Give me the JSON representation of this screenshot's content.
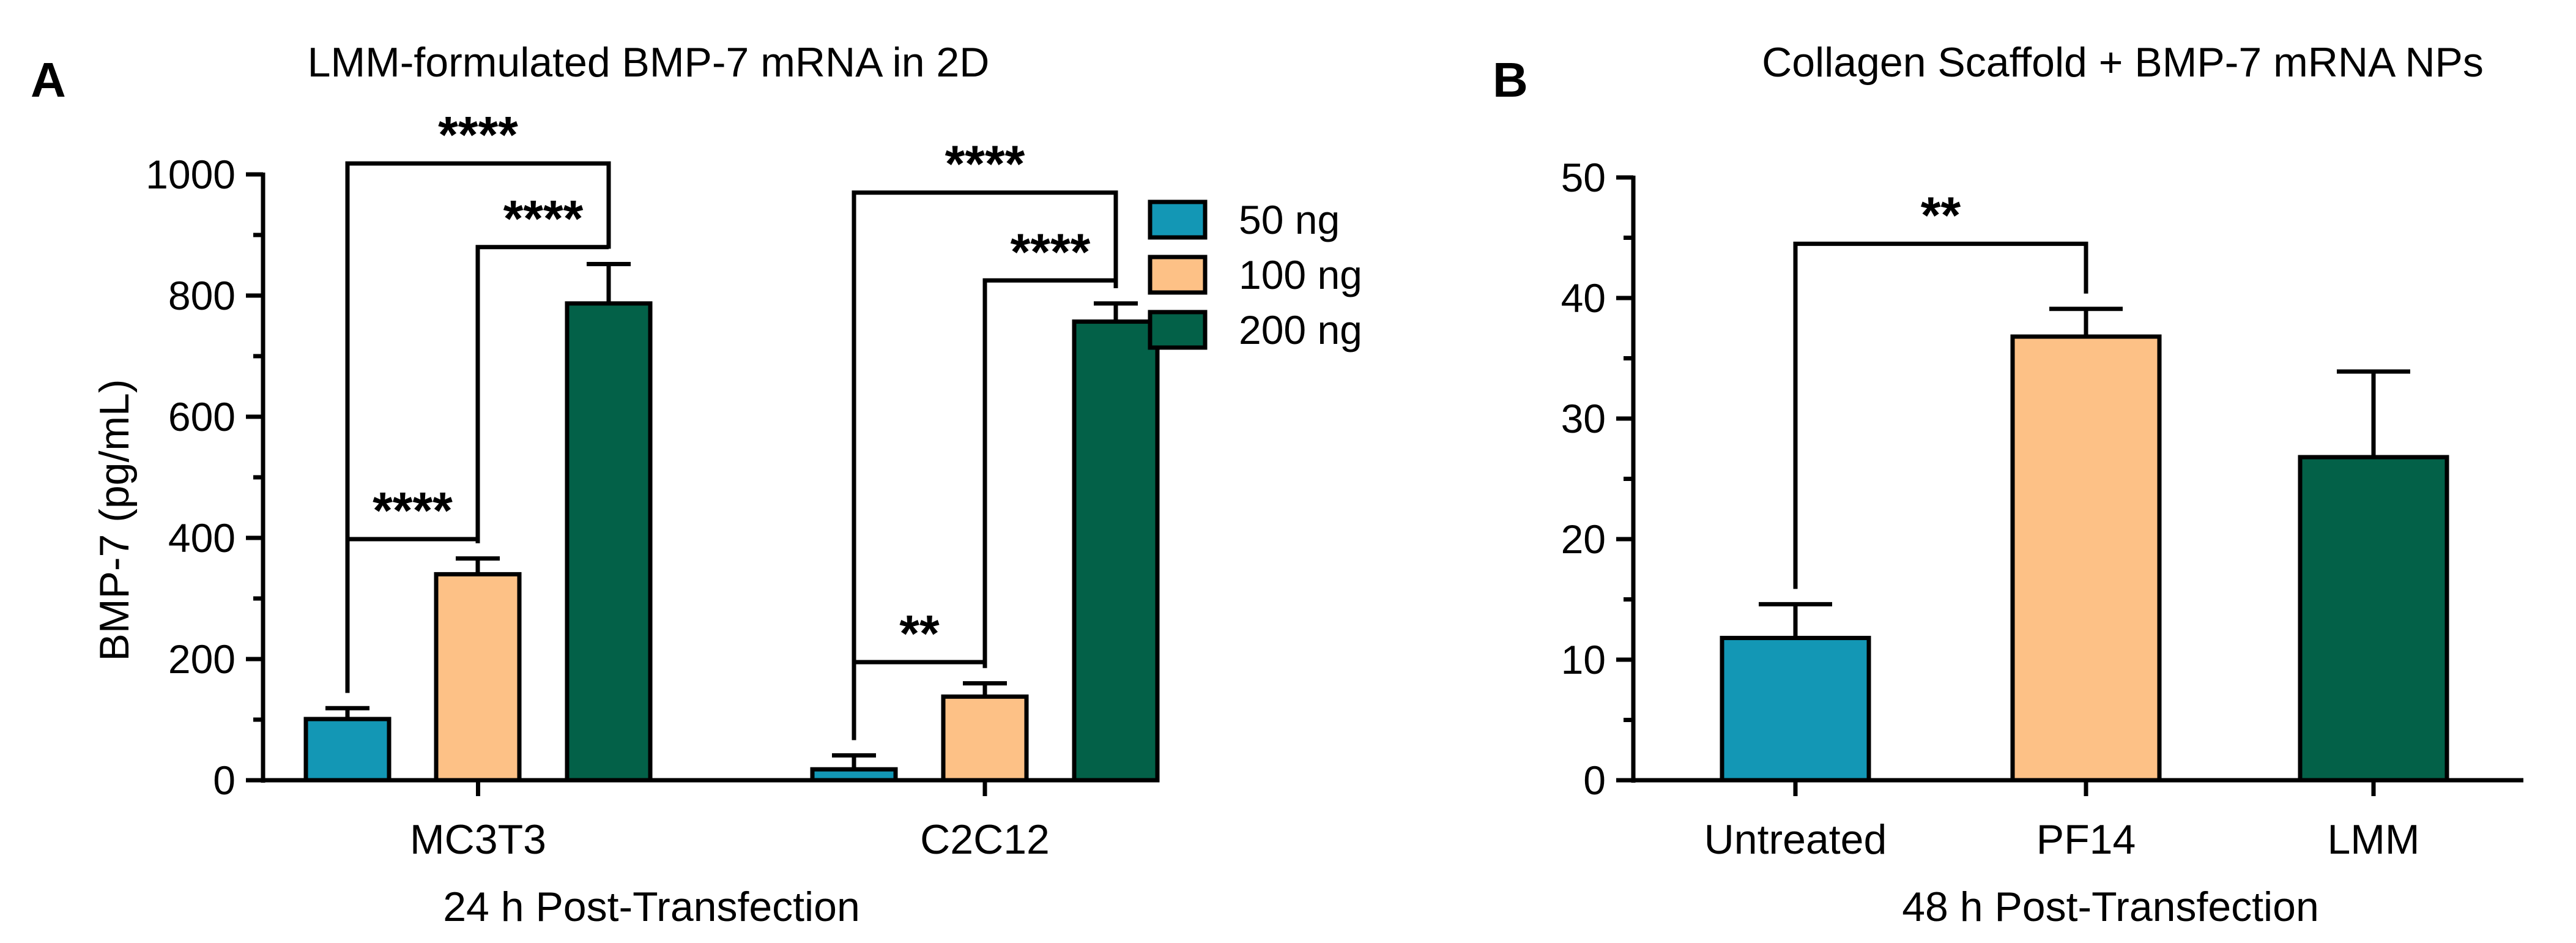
{
  "panel_labels": [
    "A",
    "B"
  ],
  "chart_data": [
    {
      "type": "bar",
      "panel": "A",
      "title": "LMM-formulated BMP-7 mRNA in 2D",
      "xlabel": "24 h Post-Transfection",
      "ylabel": "BMP-7 (pg/mL)",
      "ylim": [
        0,
        1000
      ],
      "yticks": [
        0,
        200,
        400,
        600,
        800,
        1000
      ],
      "categories": [
        "MC3T3",
        "C2C12"
      ],
      "series": [
        {
          "name": "50 ng",
          "color": "#1397b5",
          "values": [
            101,
            18
          ],
          "errors": [
            18,
            23
          ]
        },
        {
          "name": "100 ng",
          "color": "#fdc186",
          "values": [
            340,
            138
          ],
          "errors": [
            26,
            22
          ]
        },
        {
          "name": "200 ng",
          "color": "#036148",
          "values": [
            787,
            757
          ],
          "errors": [
            65,
            30
          ]
        }
      ],
      "legend_position": "top-right",
      "significance": [
        {
          "group": 0,
          "from": 0,
          "to": 2,
          "label": "****",
          "y": 1018
        },
        {
          "group": 0,
          "from": 1,
          "to": 2,
          "label": "****",
          "y": 880
        },
        {
          "group": 0,
          "from": 0,
          "to": 1,
          "label": "****",
          "y": 398
        },
        {
          "group": 1,
          "from": 0,
          "to": 2,
          "label": "****",
          "y": 970
        },
        {
          "group": 1,
          "from": 1,
          "to": 2,
          "label": "****",
          "y": 825
        },
        {
          "group": 1,
          "from": 0,
          "to": 1,
          "label": "**",
          "y": 195
        }
      ]
    },
    {
      "type": "bar",
      "panel": "B",
      "title": "Collagen Scaffold + BMP-7 mRNA NPs",
      "xlabel": "48 h Post-Transfection",
      "ylabel": "",
      "ylim": [
        0,
        50
      ],
      "yticks": [
        0,
        10,
        20,
        30,
        40,
        50
      ],
      "categories": [
        "Untreated",
        "PF14",
        "LMM"
      ],
      "colors": [
        "#1397b5",
        "#fdc186",
        "#036148"
      ],
      "values": [
        11.8,
        36.8,
        26.8
      ],
      "errors": [
        2.8,
        2.3,
        7.1
      ],
      "significance": [
        {
          "from": 0,
          "to": 1,
          "label": "**",
          "y": 44.5
        }
      ]
    }
  ]
}
